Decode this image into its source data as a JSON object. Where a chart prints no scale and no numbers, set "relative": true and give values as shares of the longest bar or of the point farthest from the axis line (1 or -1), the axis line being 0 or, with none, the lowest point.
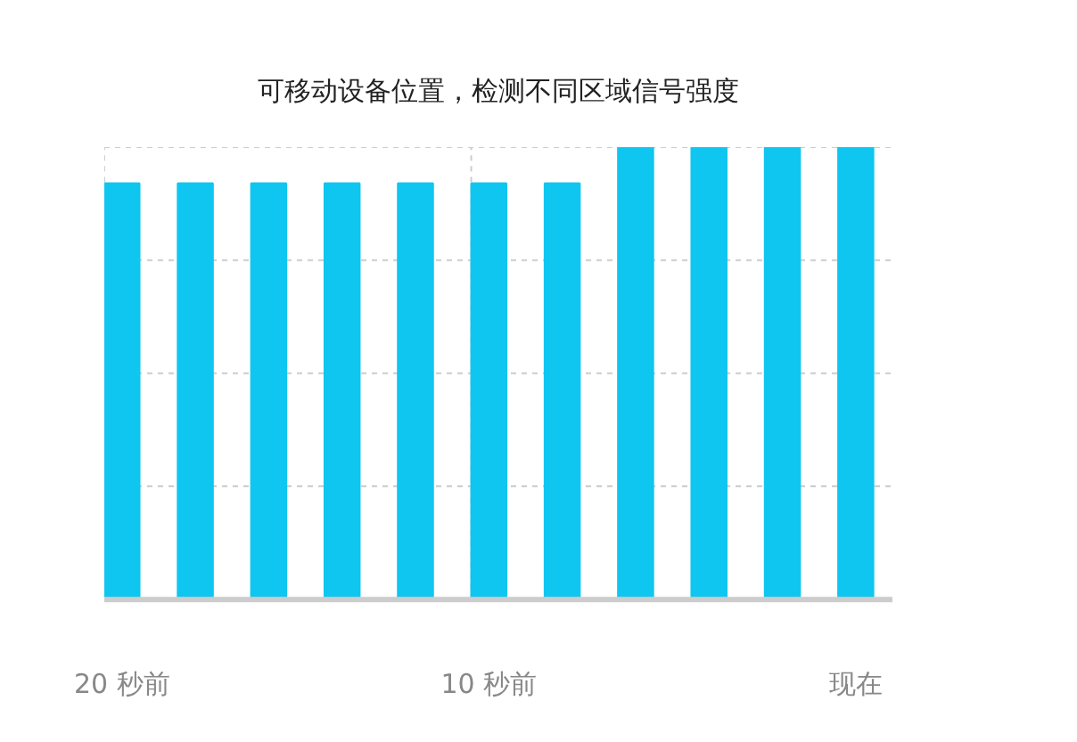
{
  "chart_data": {
    "type": "bar",
    "title": "可移动设备位置，检测不同区域信号强度",
    "categories": [
      "20 秒前",
      null,
      null,
      null,
      null,
      "10 秒前",
      null,
      null,
      null,
      null,
      "现在"
    ],
    "values": [
      0.92,
      0.92,
      0.92,
      0.92,
      0.92,
      0.92,
      0.92,
      1,
      1,
      1,
      1
    ],
    "color": "#0fc6f0",
    "relative": true,
    "grid": true
  }
}
